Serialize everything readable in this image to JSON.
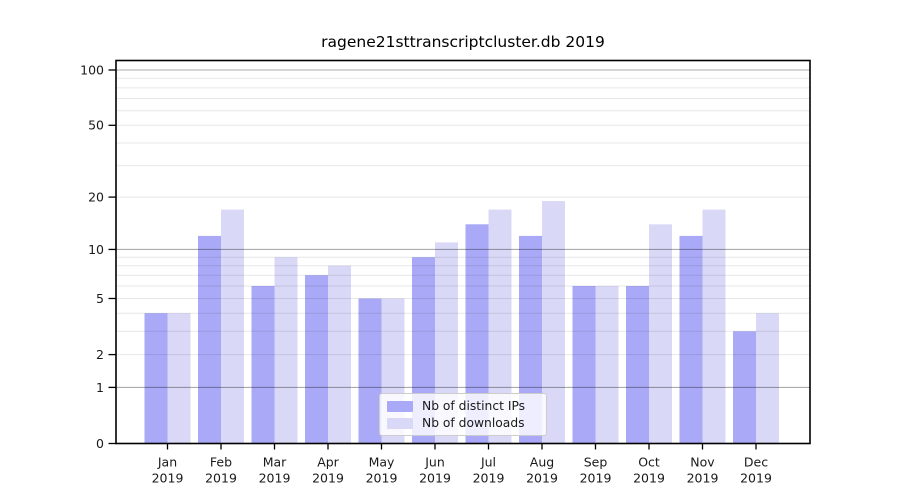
{
  "chart_data": {
    "type": "bar",
    "title": "ragene21sttranscriptcluster.db 2019",
    "categories": [
      "Jan",
      "Feb",
      "Mar",
      "Apr",
      "May",
      "Jun",
      "Jul",
      "Aug",
      "Sep",
      "Oct",
      "Nov",
      "Dec"
    ],
    "xlabel_year": "2019",
    "series": [
      {
        "name": "Nb of distinct IPs",
        "color": "#a9a9f7",
        "values": [
          4,
          12,
          6,
          7,
          5,
          9,
          14,
          12,
          6,
          6,
          12,
          3
        ]
      },
      {
        "name": "Nb of downloads",
        "color": "#d9d9f7",
        "values": [
          4,
          17,
          9,
          8,
          5,
          11,
          17,
          19,
          6,
          14,
          17,
          4
        ]
      }
    ],
    "yscale": "log1p",
    "ylim": [
      0,
      100
    ],
    "yticks": [
      0,
      1,
      2,
      5,
      10,
      20,
      50,
      100
    ],
    "minor_grid_values": [
      2,
      3,
      4,
      5,
      6,
      7,
      8,
      9,
      20,
      30,
      40,
      50,
      60,
      70,
      80,
      90
    ],
    "major_grid_values": [
      1,
      10,
      100
    ],
    "grid": true,
    "legend_position": "lower-center",
    "colors": {
      "major_grid": "#ababab",
      "minor_grid": "#e7e7e7",
      "axis": "#000000",
      "text": "#1a1a1a"
    }
  }
}
